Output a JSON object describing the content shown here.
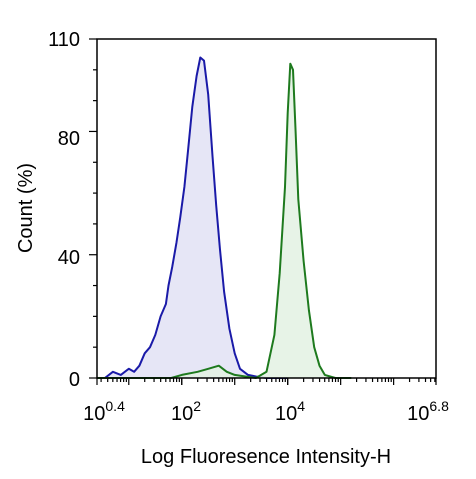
{
  "chart_data": {
    "type": "area",
    "xlabel": "Log Fluoresence Intensity-H",
    "ylabel": "Count  (%)",
    "x_scale": "log10",
    "xlim": [
      0.4,
      6.8
    ],
    "ylim": [
      0,
      110
    ],
    "x_ticks": [
      {
        "base": "10",
        "exp": "0.4",
        "value": 0.4
      },
      {
        "base": "10",
        "exp": "2",
        "value": 2
      },
      {
        "base": "10",
        "exp": "4",
        "value": 4
      },
      {
        "base": "10",
        "exp": "6.8",
        "value": 6.8
      }
    ],
    "y_ticks": [
      {
        "label": "0",
        "value": 0
      },
      {
        "label": "40",
        "value": 40
      },
      {
        "label": "80",
        "value": 80
      },
      {
        "label": "110",
        "value": 110
      }
    ],
    "grid": false,
    "legend": "none",
    "series": [
      {
        "color": "#1a1aa8",
        "fill": "#e2e2f5",
        "x": [
          0.4,
          0.55,
          0.7,
          0.85,
          1.0,
          1.1,
          1.2,
          1.3,
          1.4,
          1.5,
          1.6,
          1.7,
          1.75,
          1.82,
          1.9,
          1.97,
          2.05,
          2.12,
          2.2,
          2.28,
          2.35,
          2.42,
          2.5,
          2.58,
          2.65,
          2.72,
          2.8,
          2.9,
          3.0,
          3.1,
          3.25,
          3.4,
          3.6,
          3.8,
          4.0
        ],
        "y": [
          0,
          0,
          2,
          1,
          3,
          2,
          4,
          8,
          10,
          14,
          20,
          24,
          30,
          36,
          44,
          52,
          62,
          74,
          88,
          98,
          104,
          103,
          92,
          72,
          56,
          42,
          28,
          16,
          8,
          3,
          1,
          0.5,
          0,
          0,
          0
        ]
      },
      {
        "color": "#1e7a1e",
        "fill": "#e3f1e3",
        "x": [
          0.4,
          1.8,
          2.0,
          2.3,
          2.5,
          2.7,
          2.85,
          3.0,
          3.2,
          3.4,
          3.6,
          3.75,
          3.85,
          3.95,
          4.0,
          4.05,
          4.1,
          4.15,
          4.2,
          4.3,
          4.4,
          4.5,
          4.6,
          4.7,
          4.8,
          4.9,
          5.0,
          5.2
        ],
        "y": [
          0,
          0,
          1,
          2,
          3,
          4,
          2,
          1,
          0.5,
          0,
          2,
          14,
          34,
          62,
          86,
          102,
          100,
          80,
          58,
          38,
          22,
          10,
          4,
          1,
          0.5,
          0,
          0,
          0
        ]
      }
    ]
  }
}
